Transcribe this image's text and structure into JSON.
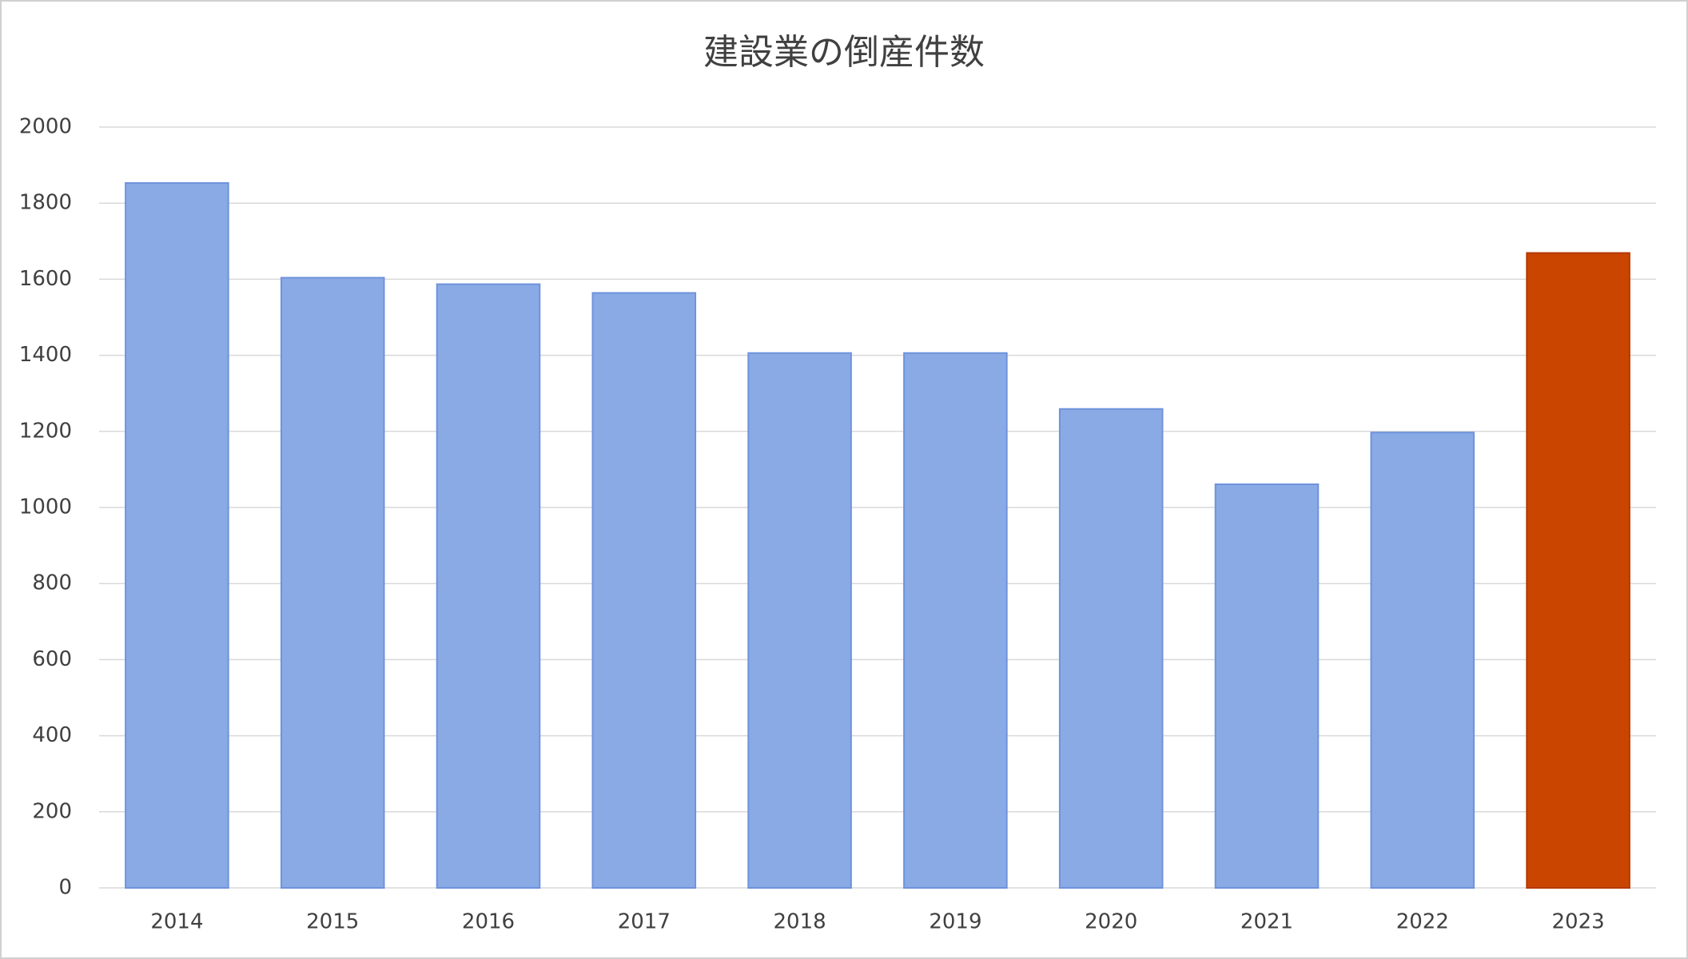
{
  "chart_data": {
    "type": "bar",
    "title": "建設業の倒産件数",
    "categories": [
      "2014",
      "2015",
      "2016",
      "2017",
      "2018",
      "2019",
      "2020",
      "2021",
      "2022",
      "2023"
    ],
    "values": [
      1853,
      1604,
      1587,
      1564,
      1406,
      1406,
      1259,
      1061,
      1197,
      1669
    ],
    "colors": [
      "#8aaae5",
      "#8aaae5",
      "#8aaae5",
      "#8aaae5",
      "#8aaae5",
      "#8aaae5",
      "#8aaae5",
      "#8aaae5",
      "#8aaae5",
      "#c94500"
    ],
    "ylim": [
      0,
      2000
    ],
    "yticks": [
      0,
      200,
      400,
      600,
      800,
      1000,
      1200,
      1400,
      1600,
      1800,
      2000
    ],
    "grid": true
  }
}
